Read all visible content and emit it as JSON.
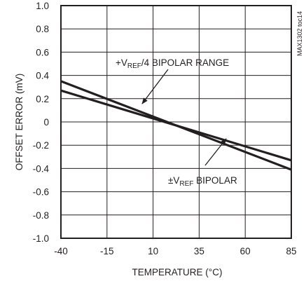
{
  "chart_data": {
    "type": "line",
    "xlabel": "TEMPERATURE (°C)",
    "ylabel": "OFFSET ERROR (mV)",
    "xlim": [
      -40,
      85
    ],
    "ylim": [
      -1.0,
      1.0
    ],
    "x_ticks": [
      -40,
      -15,
      10,
      35,
      60,
      85
    ],
    "y_ticks": [
      1.0,
      0.8,
      0.6,
      0.4,
      0.2,
      0,
      -0.2,
      -0.4,
      -0.6,
      -0.8,
      -1.0
    ],
    "x_tick_labels": [
      "-40",
      "-15",
      "10",
      "35",
      "60",
      "85"
    ],
    "y_tick_labels": [
      "1.0",
      "0.8",
      "0.6",
      "0.4",
      "0.2",
      "0",
      "-0.2",
      "-0.4",
      "-0.6",
      "-0.8",
      "-1.0"
    ],
    "grid": true,
    "series": [
      {
        "name": "+VREF/4 BIPOLAR RANGE",
        "x": [
          -40,
          85
        ],
        "y": [
          0.27,
          -0.33
        ]
      },
      {
        "name": "±VREF BIPOLAR",
        "x": [
          -40,
          85
        ],
        "y": [
          0.35,
          -0.41
        ]
      }
    ],
    "annotations": [
      {
        "text_pre": "+V",
        "text_sub": "REF",
        "text_post": "/4 BIPOLAR RANGE"
      },
      {
        "text_pre": "±V",
        "text_sub": "REF",
        "text_post": " BIPOLAR"
      }
    ],
    "figure_code": "MAX1302 toc14"
  }
}
